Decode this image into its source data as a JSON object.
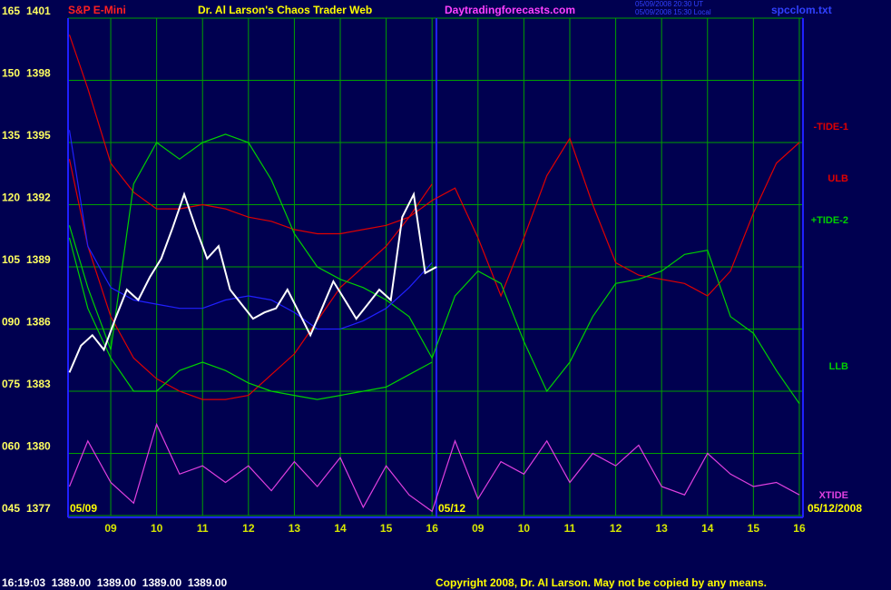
{
  "chart_data": {
    "type": "line",
    "instrument": "S&P E-Mini",
    "title": "Dr. Al Larson's Chaos Trader Web",
    "site": "Daytradingforecasts.com",
    "timestamps": [
      "05/09/2008 20:30 UT",
      "05/09/2008 15:30 Local"
    ],
    "file": "spcclom.txt",
    "date_labels": [
      "05/09",
      "05/12",
      "05/12/2008"
    ],
    "quote": "16:19:03  1389.00  1389.00  1389.00  1389.00",
    "copyright": "Copyright 2008, Dr. Al Larson. May not be copied by any means.",
    "grid": true,
    "xlim": [
      8.07,
      24.08
    ],
    "xticks": [
      {
        "value": 9,
        "label": "09"
      },
      10,
      11,
      12,
      13,
      14,
      15,
      16,
      {
        "value": 17,
        "label": "09"
      },
      {
        "value": 18,
        "label": "10"
      },
      {
        "value": 19,
        "label": "11"
      },
      {
        "value": 20,
        "label": "12"
      },
      {
        "value": 21,
        "label": "13"
      },
      {
        "value": 22,
        "label": "14"
      },
      {
        "value": 23,
        "label": "15"
      },
      {
        "value": 24,
        "label": "16"
      }
    ],
    "ylim": [
      45,
      165
    ],
    "yticks": [
      {
        "value": 45,
        "label": "045"
      },
      {
        "value": 60,
        "label": "060"
      },
      {
        "value": 75,
        "label": "075"
      },
      {
        "value": 90,
        "label": "090"
      },
      105,
      120,
      135,
      150,
      165
    ],
    "y2lim": [
      1377,
      1401
    ],
    "y2ticks": [
      1377,
      1380,
      1383,
      1386,
      1389,
      1392,
      1395,
      1398,
      1401
    ],
    "x": [
      8.1,
      8.5,
      9,
      9.5,
      10,
      10.5,
      11,
      11.5,
      12,
      12.5,
      13,
      13.5,
      14,
      14.5,
      15,
      15.5,
      16,
      16.5,
      17,
      17.5,
      18,
      18.5,
      19,
      19.5,
      20,
      20.5,
      21,
      21.5,
      22,
      22.5,
      23,
      23.5,
      24
    ],
    "series": [
      {
        "name": "-TIDE-1",
        "color": "#e00000",
        "values": [
          161,
          148,
          130,
          123,
          119,
          119,
          120,
          119,
          117,
          116,
          114,
          113,
          113,
          114,
          115,
          117,
          121,
          124,
          112,
          98,
          112,
          127,
          136,
          120,
          106,
          103,
          102,
          101,
          98,
          104,
          118,
          130,
          135
        ]
      },
      {
        "name": "ULB",
        "color": "#e00000",
        "values": [
          131,
          110,
          93,
          83,
          78,
          75,
          73,
          73,
          74,
          79,
          84,
          92,
          100,
          105,
          110,
          117,
          125,
          null,
          null,
          null,
          null,
          null,
          null,
          null,
          null,
          null,
          null,
          null,
          null,
          null,
          null,
          null,
          null
        ]
      },
      {
        "name": "+TIDE-2",
        "color": "#00d000",
        "values": [
          115,
          100,
          85,
          125,
          135,
          131,
          135,
          137,
          135,
          126,
          113,
          105,
          102,
          100,
          97,
          93,
          83,
          98,
          104,
          101,
          87,
          75,
          82,
          93,
          101,
          102,
          104,
          108,
          109,
          93,
          89,
          80,
          72
        ]
      },
      {
        "name": "LLB",
        "color": "#00d000",
        "values": [
          112,
          95,
          83,
          75,
          75,
          80,
          82,
          80,
          77,
          75,
          74,
          73,
          74,
          75,
          76,
          79,
          82,
          null,
          null,
          null,
          null,
          null,
          null,
          null,
          null,
          null,
          null,
          null,
          null,
          null,
          null,
          null,
          null
        ]
      },
      {
        "name": "XTIDE",
        "color": "#e040e0",
        "values": [
          52,
          63,
          53,
          48,
          67,
          55,
          57,
          53,
          57,
          51,
          58,
          52,
          59,
          47,
          57,
          50,
          46,
          63,
          49,
          58,
          55,
          63,
          53,
          60,
          57,
          62,
          52,
          50,
          60,
          55,
          52,
          53,
          50
        ]
      },
      {
        "color": "#2020ff",
        "values": [
          138,
          110,
          100,
          97,
          96,
          95,
          95,
          97,
          98,
          97,
          94,
          90,
          90,
          92,
          95,
          100,
          106,
          null,
          null,
          null,
          null,
          null,
          null,
          null,
          null,
          null,
          null,
          null,
          null,
          null,
          null,
          null,
          null
        ]
      },
      {
        "color": "#ffffff",
        "axis": "y2",
        "x": [
          8.1,
          8.35,
          8.6,
          8.85,
          9.1,
          9.35,
          9.6,
          9.85,
          10.1,
          10.35,
          10.6,
          10.85,
          11.1,
          11.35,
          11.6,
          11.85,
          12.1,
          12.35,
          12.6,
          12.85,
          13.1,
          13.35,
          13.6,
          13.85,
          14.1,
          14.35,
          14.6,
          14.85,
          15.1,
          15.35,
          15.6,
          15.85,
          16.1
        ],
        "values": [
          1383.9,
          1385.2,
          1385.7,
          1385.0,
          1386.5,
          1387.9,
          1387.4,
          1388.5,
          1389.4,
          1390.9,
          1392.5,
          1390.9,
          1389.4,
          1390.0,
          1387.9,
          1387.2,
          1386.5,
          1386.8,
          1387.0,
          1387.9,
          1386.8,
          1385.7,
          1387.0,
          1388.3,
          1387.4,
          1386.5,
          1387.2,
          1387.9,
          1387.4,
          1391.4,
          1392.5,
          1388.7,
          1389.0
        ]
      }
    ]
  }
}
